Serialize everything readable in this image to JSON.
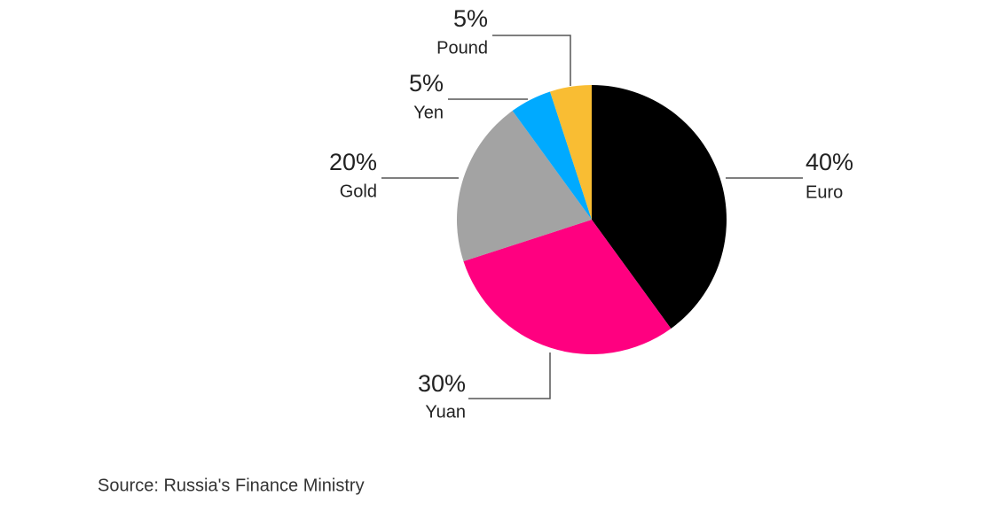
{
  "chart_data": {
    "type": "pie",
    "categories": [
      "Euro",
      "Yuan",
      "Gold",
      "Yen",
      "Pound"
    ],
    "values": [
      40,
      30,
      20,
      5,
      5
    ],
    "value_labels": [
      "40%",
      "30%",
      "20%",
      "5%",
      "5%"
    ],
    "colors": [
      "#000000",
      "#ff0080",
      "#a3a3a3",
      "#00aaff",
      "#f9bd33"
    ],
    "source": "Source: Russia's Finance Ministry"
  }
}
